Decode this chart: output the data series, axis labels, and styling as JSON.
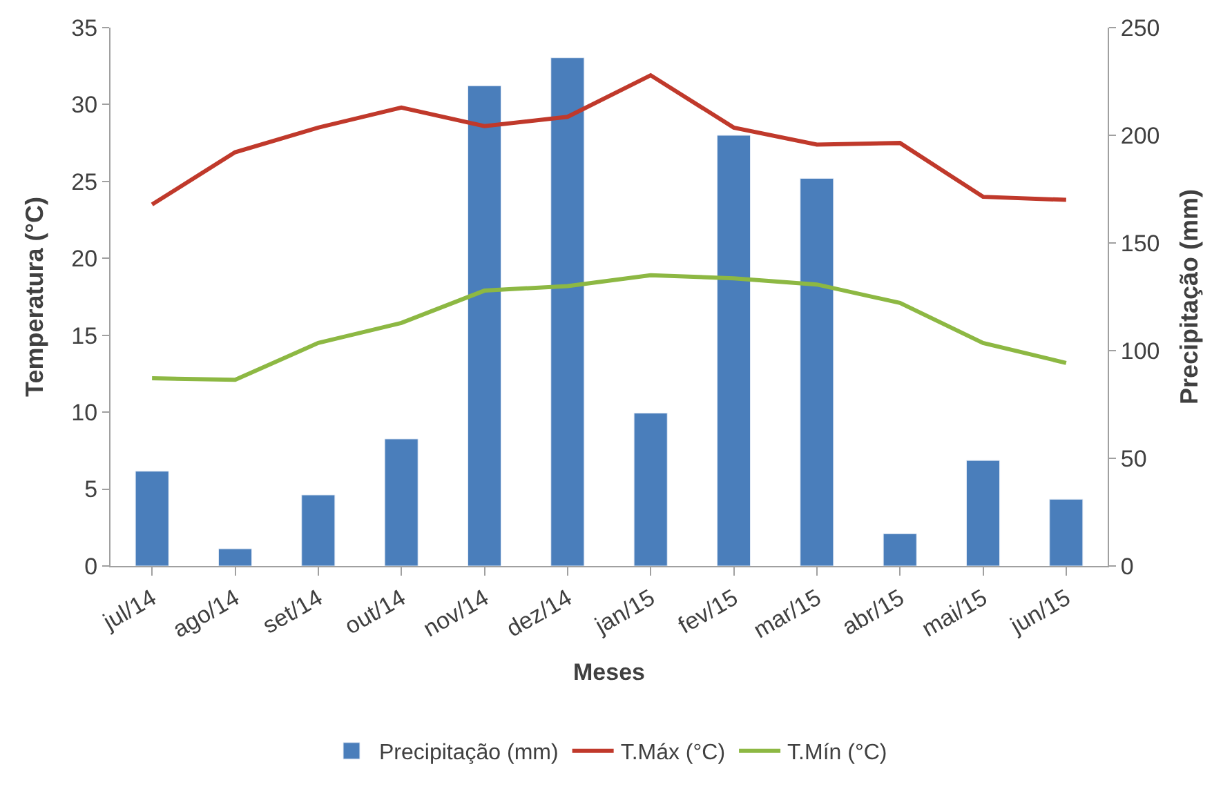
{
  "chart_data": {
    "type": "bar",
    "xlabel": "Meses",
    "ylabel": "Temperatura (°C)",
    "y2label": "Precipitação (mm)",
    "categories": [
      "jul/14",
      "ago/14",
      "set/14",
      "out/14",
      "nov/14",
      "dez/14",
      "jan/15",
      "fev/15",
      "mar/15",
      "abr/15",
      "mai/15",
      "jun/15"
    ],
    "series": [
      {
        "name": "Precipitação (mm)",
        "axis": "y2",
        "color": "#4a7ebb",
        "values": [
          44,
          8,
          33,
          59,
          223,
          236,
          71,
          200,
          180,
          15,
          49,
          31
        ]
      },
      {
        "name": "T.Máx (°C)",
        "type": "line",
        "color": "#c0392b",
        "values": [
          23.5,
          26.9,
          28.5,
          29.8,
          28.6,
          29.2,
          31.9,
          28.5,
          27.4,
          27.5,
          24.0,
          23.8
        ]
      },
      {
        "name": "T.Mín (°C)",
        "type": "line",
        "color": "#8db843",
        "values": [
          12.2,
          12.1,
          14.5,
          15.8,
          17.9,
          18.2,
          18.9,
          18.7,
          18.3,
          17.1,
          14.5,
          13.2
        ]
      }
    ],
    "ylim": [
      0,
      35
    ],
    "yticks": [
      0,
      5,
      10,
      15,
      20,
      25,
      30,
      35
    ],
    "y2lim": [
      0,
      250
    ],
    "y2ticks": [
      0,
      50,
      100,
      150,
      200,
      250
    ],
    "legend": "bottom",
    "marker": "none",
    "line_style": "solid"
  }
}
